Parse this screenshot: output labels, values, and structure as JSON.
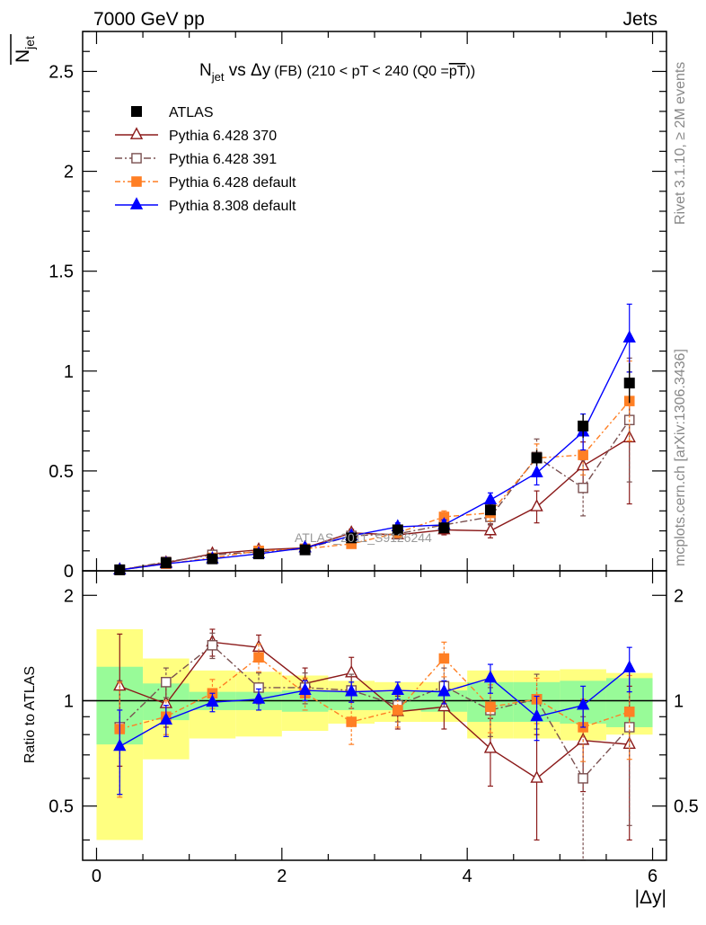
{
  "header": {
    "left": "7000 GeV pp",
    "right": "Jets"
  },
  "side_labels": {
    "rivet": "Rivet 3.1.10, ≥ 2M events",
    "mcplots": "mcplots.cern.ch [arXiv:1306.3436]"
  },
  "watermark": "ATLAS_2011_S9126244",
  "title": {
    "main": "N",
    "main_sub": "jet",
    "vs": " vs Δy",
    "fb": "(FB)",
    "range": "(210 < pT < 240 (Q0 =",
    "pt": "pT",
    "close": "))"
  },
  "y_axis_label": {
    "top": "N",
    "sub": "jet",
    "bottom": "Ratio to ATLAS"
  },
  "x_axis_label": "|Δy|",
  "colors": {
    "atlas": "#000000",
    "p370": "#8b1a1a",
    "p391": "#7a5050",
    "p6def": "#ff7f24",
    "p8def": "#0000ff",
    "band_green": "#98fb98",
    "band_yellow": "#ffff80"
  },
  "chart_data": {
    "type": "scatter",
    "xlim": [
      -0.15,
      6.15
    ],
    "main_ylim": [
      0,
      2.7
    ],
    "ratio_ylim": [
      0.35,
      2.35
    ],
    "x": [
      0.25,
      0.75,
      1.25,
      1.75,
      2.25,
      2.75,
      3.25,
      3.75,
      4.25,
      4.75,
      5.25,
      5.75
    ],
    "x_edges": [
      0,
      0.5,
      1,
      1.5,
      2,
      2.5,
      3,
      3.5,
      4,
      4.5,
      5,
      5.5,
      6
    ],
    "main_yticks": [
      0,
      0.5,
      1,
      1.5,
      2,
      2.5
    ],
    "main_ytick_labels": [
      "0",
      "0.5",
      "1",
      "1.5",
      "2",
      "2.5"
    ],
    "ratio_yticks": [
      0.5,
      1,
      2
    ],
    "ratio_ytick_labels": [
      "0.5",
      "1",
      "2"
    ],
    "xticks": [
      0,
      2,
      4,
      6
    ],
    "xtick_labels": [
      "0",
      "2",
      "4",
      "6"
    ],
    "legend": [
      "ATLAS",
      "Pythia 6.428 370",
      "Pythia 6.428 391",
      "Pythia 6.428 default",
      "Pythia 8.308 default"
    ],
    "atlas": {
      "values": [
        0.005,
        0.04,
        0.06,
        0.085,
        0.105,
        0.165,
        0.205,
        0.215,
        0.305,
        0.565,
        0.725,
        0.94
      ],
      "errors": [
        0.003,
        0.005,
        0.006,
        0.008,
        0.01,
        0.013,
        0.015,
        0.015,
        0.025,
        0.04,
        0.06,
        0.1
      ],
      "band_inner": [
        0.25,
        0.12,
        0.06,
        0.06,
        0.07,
        0.06,
        0.06,
        0.07,
        0.13,
        0.13,
        0.14,
        0.16
      ],
      "band_outer": [
        0.6,
        0.32,
        0.22,
        0.21,
        0.18,
        0.14,
        0.13,
        0.13,
        0.22,
        0.22,
        0.23,
        0.2
      ]
    },
    "series": [
      {
        "name": "Pythia 6.428 370",
        "values": [
          0.005,
          0.04,
          0.085,
          0.105,
          0.115,
          0.19,
          0.18,
          0.205,
          0.2,
          0.32,
          0.525,
          0.665
        ],
        "errors": [
          0.002,
          0.005,
          0.008,
          0.01,
          0.012,
          0.018,
          0.02,
          0.025,
          0.035,
          0.08,
          0.12,
          0.33
        ],
        "ratio": [
          1.1,
          0.98,
          1.47,
          1.42,
          1.12,
          1.2,
          0.93,
          0.96,
          0.73,
          0.6,
          0.77,
          0.75
        ],
        "ratio_err": [
          0.45,
          0.14,
          0.13,
          0.12,
          0.12,
          0.13,
          0.1,
          0.13,
          0.16,
          0.2,
          0.22,
          0.35
        ]
      },
      {
        "name": "Pythia 6.428 391",
        "values": [
          0.004,
          0.045,
          0.08,
          0.095,
          0.11,
          0.175,
          0.185,
          0.23,
          0.27,
          0.57,
          0.415,
          0.755
        ],
        "errors": [
          0.002,
          0.005,
          0.008,
          0.01,
          0.012,
          0.018,
          0.02,
          0.025,
          0.04,
          0.09,
          0.14,
          0.31
        ],
        "ratio": [
          0.84,
          1.13,
          1.44,
          1.09,
          1.09,
          1.07,
          0.97,
          1.1,
          0.94,
          1.01,
          0.6,
          0.84
        ],
        "ratio_err": [
          0.3,
          0.11,
          0.12,
          0.11,
          0.11,
          0.12,
          0.1,
          0.14,
          0.15,
          0.18,
          0.3,
          0.4
        ]
      },
      {
        "name": "Pythia 6.428 default",
        "values": [
          0.004,
          0.035,
          0.065,
          0.1,
          0.11,
          0.135,
          0.19,
          0.27,
          0.29,
          0.565,
          0.58,
          0.85
        ],
        "errors": [
          0.002,
          0.005,
          0.006,
          0.01,
          0.011,
          0.015,
          0.02,
          0.03,
          0.04,
          0.07,
          0.1,
          0.2
        ],
        "ratio": [
          0.83,
          0.9,
          1.05,
          1.33,
          1.05,
          0.87,
          0.94,
          1.32,
          0.96,
          1.01,
          0.84,
          0.93
        ],
        "ratio_err": [
          0.3,
          0.1,
          0.1,
          0.12,
          0.11,
          0.12,
          0.1,
          0.15,
          0.15,
          0.15,
          0.17,
          0.25
        ]
      },
      {
        "name": "Pythia 8.308 default",
        "values": [
          0.004,
          0.035,
          0.06,
          0.085,
          0.115,
          0.175,
          0.22,
          0.23,
          0.355,
          0.49,
          0.695,
          1.165
        ],
        "errors": [
          0.002,
          0.005,
          0.006,
          0.008,
          0.01,
          0.015,
          0.02,
          0.025,
          0.035,
          0.06,
          0.09,
          0.17
        ],
        "ratio": [
          0.74,
          0.88,
          0.99,
          1.01,
          1.07,
          1.06,
          1.07,
          1.06,
          1.16,
          0.9,
          0.97,
          1.24
        ],
        "ratio_err": [
          0.2,
          0.09,
          0.06,
          0.07,
          0.07,
          0.07,
          0.06,
          0.08,
          0.11,
          0.13,
          0.13,
          0.18
        ]
      }
    ]
  }
}
